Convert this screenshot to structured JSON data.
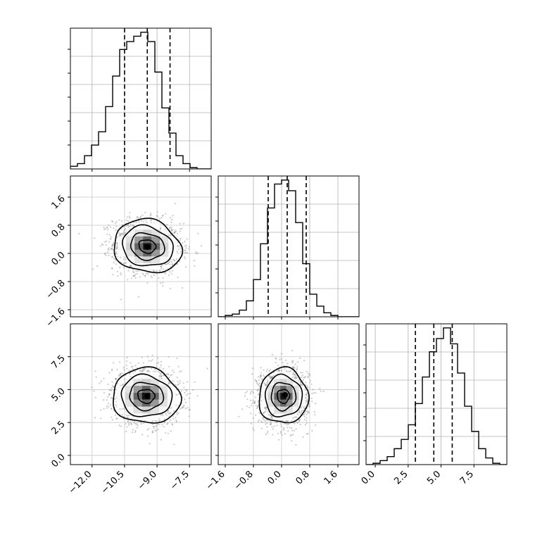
{
  "chart_data": {
    "type": "corner",
    "title": "",
    "grid": true,
    "axis_ticks": {
      "p0": {
        "values": [
          -12.0,
          -10.5,
          -9.0,
          -7.5
        ],
        "labels": [
          "−12.0",
          "−10.5",
          "−9.0",
          "−7.5"
        ],
        "range": [
          -13.0,
          -6.5
        ]
      },
      "p1": {
        "values": [
          -1.6,
          -0.8,
          0.0,
          0.8,
          1.6
        ],
        "labels": [
          "−1.6",
          "−0.8",
          "0.0",
          "0.8",
          "1.6"
        ],
        "range": [
          -1.8,
          2.2
        ]
      },
      "p2": {
        "values": [
          0.0,
          2.5,
          5.0,
          7.5
        ],
        "labels": [
          "0.0",
          "2.5",
          "5.0",
          "7.5"
        ],
        "range": [
          -0.7,
          10.0
        ]
      }
    },
    "histograms": [
      {
        "param": "p0",
        "bin_edges": [
          -13.0,
          -12.675,
          -12.35,
          -12.025,
          -11.7,
          -11.375,
          -11.05,
          -10.725,
          -10.4,
          -10.075,
          -9.75,
          -9.425,
          -9.1,
          -8.775,
          -8.45,
          -8.125,
          -7.8,
          -7.475,
          -7.15,
          -6.825,
          -6.5
        ],
        "counts": [
          2,
          4,
          10,
          18,
          28,
          47,
          70,
          90,
          96,
          100,
          103,
          96,
          73,
          46,
          27,
          10,
          4,
          1,
          0,
          0
        ],
        "quantiles": [
          -10.5,
          -9.45,
          -8.4
        ]
      },
      {
        "param": "p1",
        "bin_edges": [
          -1.8,
          -1.6,
          -1.4,
          -1.2,
          -1.0,
          -0.8,
          -0.6,
          -0.4,
          -0.2,
          0.0,
          0.2,
          0.4,
          0.6,
          0.8,
          1.0,
          1.2,
          1.4,
          1.6,
          1.8,
          2.0,
          2.2
        ],
        "counts": [
          0,
          1,
          2,
          5,
          12,
          28,
          55,
          82,
          100,
          103,
          95,
          71,
          40,
          17,
          8,
          3,
          1,
          0,
          0,
          0
        ],
        "quantiles": [
          -0.38,
          0.16,
          0.7
        ]
      },
      {
        "param": "p2",
        "bin_edges": [
          -0.7,
          -0.165,
          0.37,
          0.905,
          1.44,
          1.975,
          2.51,
          3.045,
          3.58,
          4.115,
          4.65,
          5.185,
          5.72,
          6.255,
          6.79,
          7.325,
          7.86,
          8.395,
          8.93,
          9.465,
          10.0
        ],
        "counts": [
          0,
          1,
          3,
          6,
          12,
          19,
          30,
          46,
          66,
          85,
          95,
          103,
          91,
          69,
          44,
          25,
          12,
          5,
          1,
          0
        ],
        "quantiles": [
          3.05,
          4.45,
          5.85
        ]
      }
    ],
    "panels_2d": [
      {
        "x": "p0",
        "y": "p1",
        "mean": [
          -9.45,
          0.2
        ],
        "sd": [
          0.78,
          0.38
        ],
        "rho": -0.12,
        "peak": [
          -9.45,
          0.18
        ]
      },
      {
        "x": "p0",
        "y": "p2",
        "mean": [
          -9.5,
          4.5
        ],
        "sd": [
          0.78,
          1.05
        ],
        "rho": -0.05,
        "peak": [
          -9.45,
          4.5
        ]
      },
      {
        "x": "p1",
        "y": "p2",
        "mean": [
          0.05,
          4.5
        ],
        "sd": [
          0.35,
          1.05
        ],
        "rho": 0.0,
        "peak": [
          0.1,
          4.6
        ]
      }
    ],
    "contour_levels_sigma": [
      0.5,
      1.0,
      1.5,
      2.0
    ]
  }
}
